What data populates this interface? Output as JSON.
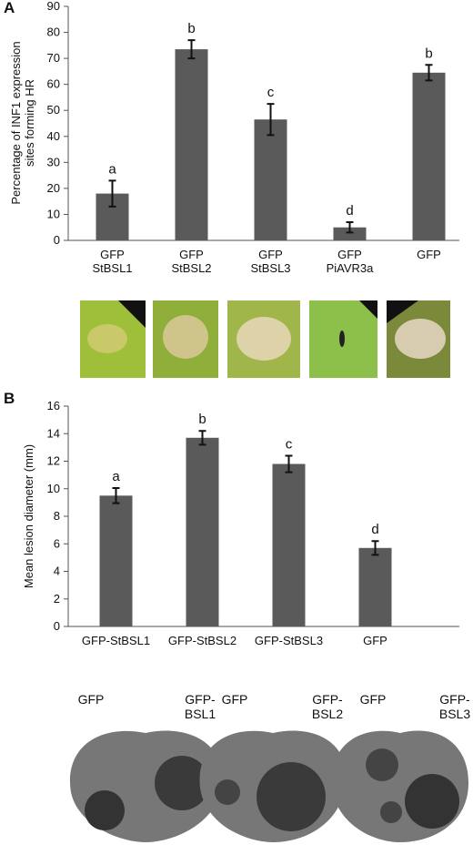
{
  "panel_labels": [
    "A",
    "B"
  ],
  "chart_data": [
    {
      "type": "bar",
      "y_label": "Percentage of INF1 expression\nsites forming HR",
      "categories": [
        "GFP\nStBSL1",
        "GFP\nStBSL2",
        "GFP\nStBSL3",
        "GFP\nPiAVR3a",
        "GFP"
      ],
      "values": [
        18,
        73.5,
        46.5,
        5,
        64.5
      ],
      "errors": [
        5,
        3.5,
        6,
        2,
        3
      ],
      "annotations": [
        "a",
        "b",
        "c",
        "d",
        "b"
      ],
      "color": "#5a5a5a",
      "ylim": [
        0,
        90
      ],
      "yticks": [
        0,
        10,
        20,
        30,
        40,
        50,
        60,
        70,
        80,
        90
      ]
    },
    {
      "type": "bar",
      "y_label": "Mean lesion diameter (mm)",
      "categories": [
        "GFP-StBSL1",
        "GFP-StBSL2",
        "GFP-StBSL3",
        "GFP"
      ],
      "values": [
        9.5,
        13.7,
        11.8,
        5.7
      ],
      "errors": [
        0.55,
        0.5,
        0.6,
        0.5
      ],
      "annotations": [
        "a",
        "b",
        "c",
        "d"
      ],
      "color": "#5a5a5a",
      "ylim": [
        0,
        16
      ],
      "yticks": [
        0,
        2,
        4,
        6,
        8,
        10,
        12,
        14,
        16
      ]
    }
  ],
  "leaf_labels": [
    [
      "GFP",
      "GFP-\nBSL1"
    ],
    [
      "GFP",
      "GFP-\nBSL2"
    ],
    [
      "GFP",
      "GFP-\nBSL3"
    ]
  ]
}
